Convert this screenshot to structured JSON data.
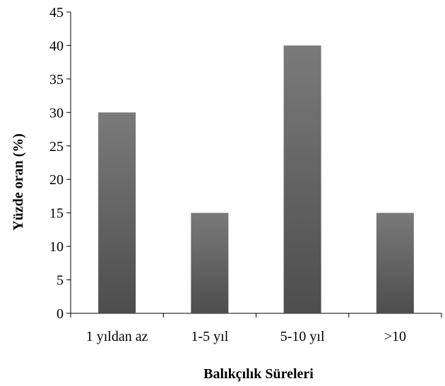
{
  "chart_data": {
    "type": "bar",
    "title": "",
    "xlabel": "Balıkçılık Süreleri",
    "ylabel": "Yüzde oran (%)",
    "categories": [
      "1 yıldan az",
      "1-5 yıl",
      "5-10 yıl",
      ">10"
    ],
    "values": [
      30,
      15,
      40,
      15
    ],
    "ylim": [
      0,
      45
    ],
    "yticks": [
      0,
      5,
      10,
      15,
      20,
      25,
      30,
      35,
      40,
      45
    ],
    "grid": false,
    "legend": "none",
    "colors": {
      "bar_top": "#7a7a7a",
      "bar_bottom": "#4d4d4d",
      "axis": "#000000"
    }
  }
}
